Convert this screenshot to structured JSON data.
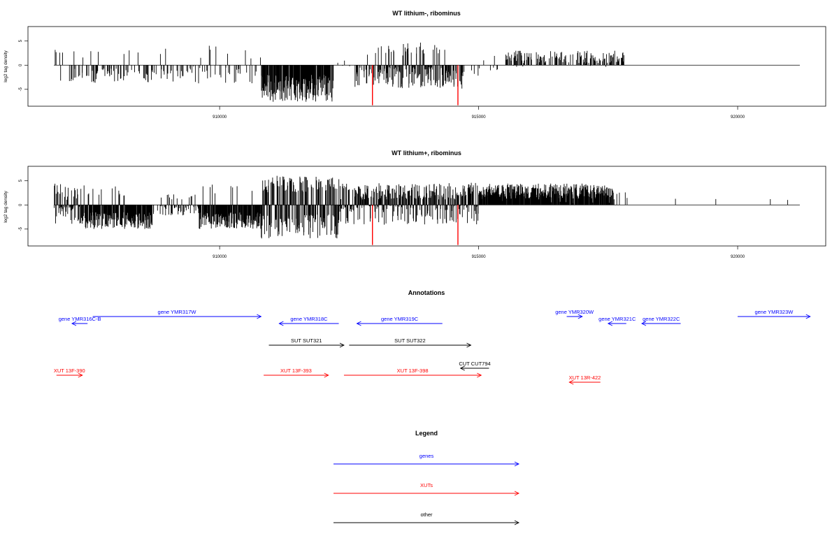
{
  "chart_data": [
    {
      "type": "bar",
      "title": "WT lithium-, ribominus",
      "ylabel": "log2 tag density",
      "xlim": [
        906300,
        921700
      ],
      "ylim": [
        -8.5,
        8
      ],
      "x_ticks": [
        910000,
        915000,
        920000
      ],
      "y_ticks": [
        -5,
        0,
        5
      ],
      "series": [
        {
          "seed": 11,
          "values_note_segments": [
            [
              906800,
              907100,
              0.15,
              0.4,
              4,
              0.05
            ],
            [
              907100,
              909300,
              0.35,
              -2.2,
              1.5,
              0.18
            ],
            [
              909300,
              910800,
              0.25,
              -2.0,
              2.0,
              0.2
            ],
            [
              910800,
              912200,
              0.95,
              -4.8,
              2.8,
              0.0
            ],
            [
              912200,
              912600,
              0.05,
              0.0,
              1.0,
              0.0
            ],
            [
              912600,
              913200,
              0.55,
              -2.5,
              2.0,
              0.15
            ],
            [
              913200,
              914300,
              0.8,
              -2.6,
              2.2,
              0.28
            ],
            [
              914300,
              914700,
              0.7,
              -3.0,
              2.0,
              0.1
            ],
            [
              914700,
              915500,
              0.12,
              -1.2,
              1.0,
              0.15
            ],
            [
              915500,
              917800,
              0.45,
              1.2,
              1.6,
              0.75
            ],
            [
              917800,
              921200,
              0.0,
              0.0,
              1.0,
              0.5
            ]
          ]
        },
        {
          "name": "",
          "color": "#ff0000",
          "x": [
            912950,
            914600
          ],
          "values": [
            -8.3,
            -8.3
          ]
        }
      ]
    },
    {
      "type": "bar",
      "title": "WT lithium+, ribominus",
      "ylabel": "log2 tag density",
      "xlim": [
        906300,
        921700
      ],
      "ylim": [
        -8.5,
        8
      ],
      "x_ticks": [
        910000,
        915000,
        920000
      ],
      "y_ticks": [
        -5,
        0,
        5
      ],
      "series": [
        {
          "seed": 29,
          "values_note_segments": [
            [
              906800,
              907300,
              0.9,
              -1.5,
              2.5,
              0.4
            ],
            [
              907300,
              908700,
              0.97,
              -3.2,
              1.8,
              0.05
            ],
            [
              908700,
              909600,
              0.5,
              -1.0,
              1.2,
              0.1
            ],
            [
              909600,
              910800,
              0.97,
              -3.2,
              1.8,
              0.08
            ],
            [
              910800,
              912300,
              0.98,
              -4.5,
              2.5,
              0.45
            ],
            [
              912300,
              915000,
              0.97,
              -1.6,
              2.5,
              0.55
            ],
            [
              915000,
              917600,
              0.98,
              2.2,
              2.0,
              0.85
            ],
            [
              917600,
              917900,
              0.08,
              1.5,
              1.0,
              1.0
            ],
            [
              917900,
              921200,
              0.01,
              1.0,
              0.3,
              1.0
            ]
          ]
        },
        {
          "name": "",
          "color": "#ff0000",
          "x": [
            912950,
            914600
          ],
          "values": [
            -8.3,
            -8.3
          ]
        }
      ]
    }
  ],
  "annotations": {
    "title": "Annotations",
    "items": [
      {
        "label": "gene YMR316C-B",
        "color": "#0000ff",
        "start": 907450,
        "end": 907150,
        "row": 2
      },
      {
        "label": "gene YMR317W",
        "color": "#0000ff",
        "start": 907550,
        "end": 910800,
        "row": 1
      },
      {
        "label": "gene YMR318C",
        "color": "#0000ff",
        "start": 912300,
        "end": 911150,
        "row": 2
      },
      {
        "label": "gene YMR319C",
        "color": "#0000ff",
        "start": 914300,
        "end": 912650,
        "row": 2
      },
      {
        "label": "gene YMR320W",
        "color": "#0000ff",
        "start": 916700,
        "end": 917000,
        "row": 1
      },
      {
        "label": "gene YMR321C",
        "color": "#0000ff",
        "start": 917850,
        "end": 917500,
        "row": 2
      },
      {
        "label": "gene YMR322C",
        "color": "#0000ff",
        "start": 918900,
        "end": 918150,
        "row": 2
      },
      {
        "label": "gene YMR323W",
        "color": "#0000ff",
        "start": 920000,
        "end": 921400,
        "row": 1
      },
      {
        "label": "SUT SUT321",
        "color": "#000000",
        "start": 910950,
        "end": 912400,
        "row": 3
      },
      {
        "label": "SUT SUT322",
        "color": "#000000",
        "start": 912500,
        "end": 914850,
        "row": 3
      },
      {
        "label": "CUT CUT794",
        "color": "#000000",
        "start": 915200,
        "end": 914650,
        "row": 4
      },
      {
        "label": "XUT 13F-390",
        "color": "#ff0000",
        "start": 906850,
        "end": 907350,
        "row": 5
      },
      {
        "label": "XUT 13F-393",
        "color": "#ff0000",
        "start": 910850,
        "end": 912100,
        "row": 5
      },
      {
        "label": "XUT 13F-398",
        "color": "#ff0000",
        "start": 912400,
        "end": 915050,
        "row": 5
      },
      {
        "label": "XUT 13R-422",
        "color": "#ff0000",
        "start": 917350,
        "end": 916750,
        "row": 6
      }
    ]
  },
  "legend": {
    "title": "Legend",
    "items": [
      {
        "label": "genes",
        "color": "#0000ff"
      },
      {
        "label": "XUTs",
        "color": "#ff0000"
      },
      {
        "label": "other",
        "color": "#000000"
      }
    ]
  }
}
